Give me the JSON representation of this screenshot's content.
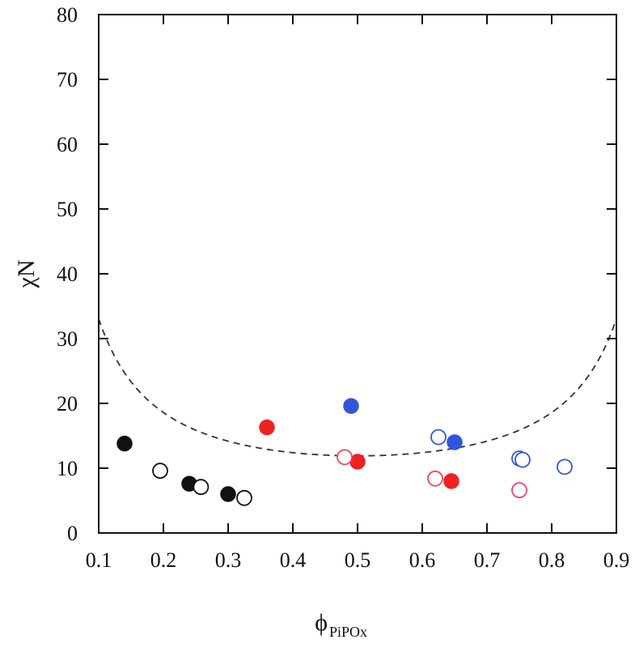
{
  "chart_data": {
    "type": "scatter",
    "xlabel": "ϕ",
    "xlabel_sub": "PiPOx",
    "ylabel": "χN",
    "xlim": [
      0.1,
      0.9
    ],
    "ylim": [
      0,
      80
    ],
    "xticks": [
      "0.1",
      "0.2",
      "0.3",
      "0.4",
      "0.5",
      "0.6",
      "0.7",
      "0.8",
      "0.9"
    ],
    "yticks": [
      "0",
      "10",
      "20",
      "30",
      "40",
      "50",
      "60",
      "70",
      "80"
    ],
    "grid": false,
    "legend": false,
    "colors": {
      "black": "#111111",
      "red": "#ee2222",
      "pink": "#ee4466",
      "blue": "#3355dd"
    },
    "spinodal_curve": {
      "style": "dashed",
      "color": "#333333",
      "formula": "2/(f(1-f))*scale",
      "minimum": {
        "x": 0.5,
        "y": 11.9
      }
    },
    "series": [
      {
        "color": "black",
        "filled": true,
        "points": [
          [
            0.14,
            13.8
          ],
          [
            0.24,
            7.6
          ],
          [
            0.3,
            6.0
          ]
        ]
      },
      {
        "color": "black",
        "filled": false,
        "points": [
          [
            0.195,
            9.6
          ],
          [
            0.258,
            7.1
          ],
          [
            0.325,
            5.4
          ]
        ]
      },
      {
        "color": "red",
        "filled": true,
        "points": [
          [
            0.36,
            16.3
          ],
          [
            0.5,
            11.0
          ],
          [
            0.645,
            8.0
          ]
        ]
      },
      {
        "color": "pink",
        "filled": false,
        "points": [
          [
            0.48,
            11.7
          ],
          [
            0.62,
            8.4
          ],
          [
            0.75,
            6.6
          ]
        ]
      },
      {
        "color": "blue",
        "filled": true,
        "points": [
          [
            0.49,
            19.6
          ],
          [
            0.65,
            14.0
          ]
        ]
      },
      {
        "color": "blue",
        "filled": false,
        "points": [
          [
            0.625,
            14.8
          ],
          [
            0.75,
            11.5
          ],
          [
            0.755,
            11.3
          ],
          [
            0.82,
            10.2
          ]
        ]
      }
    ]
  }
}
